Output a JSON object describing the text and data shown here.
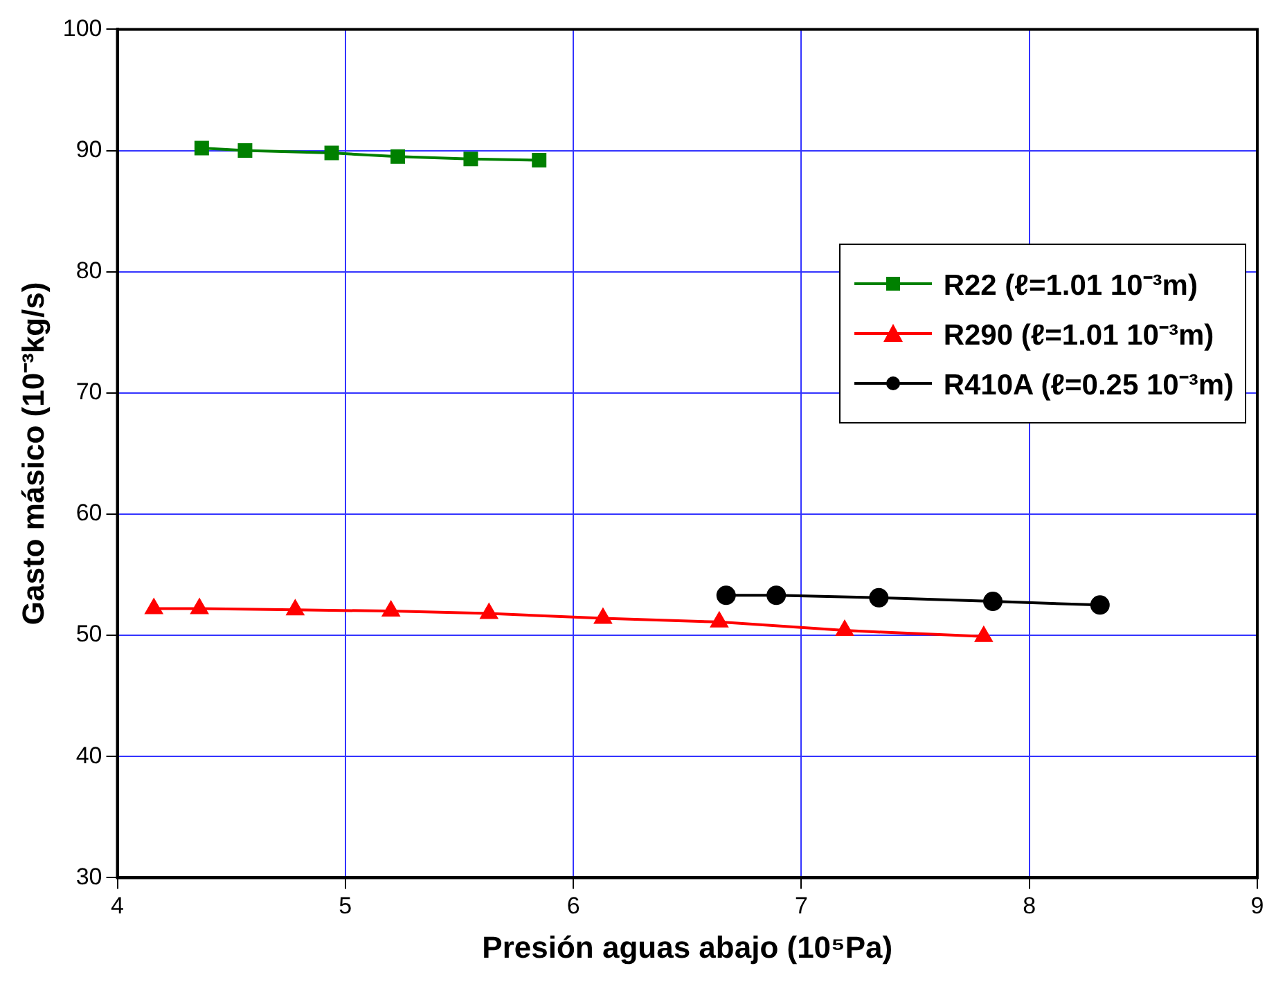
{
  "chart_data": {
    "type": "line",
    "xlabel": "Presión aguas abajo (10⁵Pa)",
    "ylabel": "Gasto másico (10⁻³kg/s)",
    "xlim": [
      4,
      9
    ],
    "xticks": [
      4,
      5,
      6,
      7,
      8,
      9
    ],
    "ylim": [
      30,
      100
    ],
    "yticks": [
      30,
      40,
      50,
      60,
      70,
      80,
      90,
      100
    ],
    "grid": true,
    "legend": "right",
    "series": [
      {
        "name": "R22 (ℓ=1.01 10⁻³m)",
        "color": "#008000",
        "marker": "square",
        "x": [
          4.37,
          4.56,
          4.94,
          5.23,
          5.55,
          5.85
        ],
        "values": [
          90.2,
          90.0,
          89.8,
          89.5,
          89.3,
          89.2
        ]
      },
      {
        "name": "R290 (ℓ=1.01 10⁻³m)",
        "color": "#ff0000",
        "marker": "triangle",
        "x": [
          4.16,
          4.36,
          4.78,
          5.2,
          5.63,
          6.13,
          6.64,
          7.19,
          7.8
        ],
        "values": [
          52.2,
          52.2,
          52.1,
          52.0,
          51.8,
          51.4,
          51.1,
          50.4,
          49.9
        ]
      },
      {
        "name": "R410A (ℓ=0.25 10⁻³m)",
        "color": "#000000",
        "marker": "circle",
        "x": [
          6.67,
          6.89,
          7.34,
          7.84,
          8.31
        ],
        "values": [
          53.3,
          53.3,
          53.1,
          52.8,
          52.5
        ]
      }
    ]
  }
}
